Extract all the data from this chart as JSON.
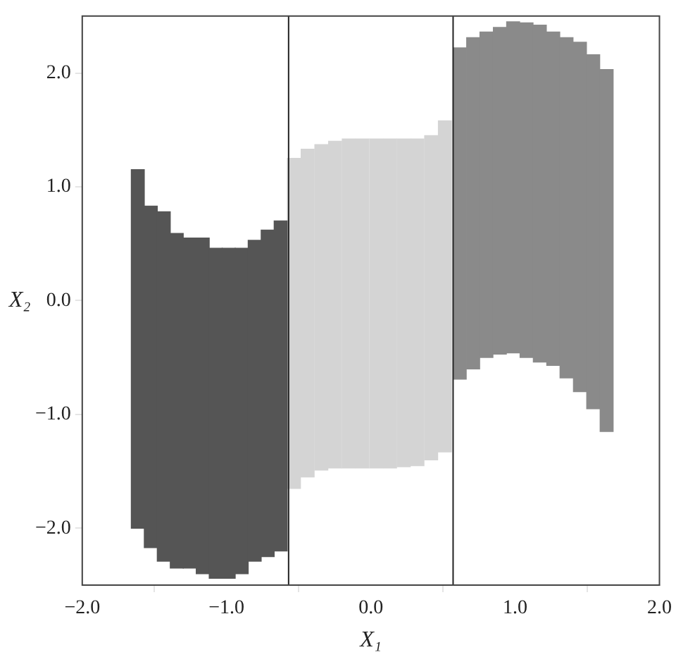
{
  "chart_data": {
    "type": "bar",
    "xlabel": "X₁",
    "ylabel": "X₂",
    "xlim": [
      -2,
      2
    ],
    "ylim": [
      -2.5,
      2.5
    ],
    "xticks": [
      {
        "value": -2,
        "label": "−2.0"
      },
      {
        "value": -1,
        "label": "−1.0"
      },
      {
        "value": 0,
        "label": "0.0"
      },
      {
        "value": 1,
        "label": "1.0"
      },
      {
        "value": 2,
        "label": "2.0"
      }
    ],
    "yticks": [
      {
        "value": -2,
        "label": "−2.0"
      },
      {
        "value": -1,
        "label": "−1.0"
      },
      {
        "value": 0,
        "label": "0.0"
      },
      {
        "value": 1,
        "label": "1.0"
      },
      {
        "value": 2,
        "label": "2.0"
      }
    ],
    "series": [
      {
        "color": "#555555",
        "x": [
          -1.615,
          -1.525,
          -1.435,
          -1.345,
          -1.255,
          -1.165,
          -1.075,
          -0.985,
          -0.895,
          -0.805,
          -0.715,
          -0.625
        ],
        "values": [
          3.15,
          3.0,
          3.07,
          2.94,
          2.9,
          2.95,
          2.9,
          2.9,
          2.86,
          2.82,
          2.87,
          2.9
        ],
        "base": [
          -2.0,
          -2.17,
          -2.29,
          -2.35,
          -2.35,
          -2.4,
          -2.44,
          -2.44,
          -2.4,
          -2.29,
          -2.25,
          -2.2
        ]
      },
      {
        "color": "#d4d4d4",
        "x": [
          -0.533,
          -0.438,
          -0.343,
          -0.248,
          -0.153,
          -0.058,
          0.038,
          0.133,
          0.228,
          0.323,
          0.418,
          0.513
        ],
        "values": [
          2.9,
          2.88,
          2.86,
          2.87,
          2.89,
          2.89,
          2.89,
          2.89,
          2.88,
          2.87,
          2.85,
          2.91
        ],
        "base": [
          -1.65,
          -1.55,
          -1.49,
          -1.47,
          -1.47,
          -1.47,
          -1.47,
          -1.47,
          -1.46,
          -1.45,
          -1.4,
          -1.33
        ]
      },
      {
        "color": "#8a8a8a",
        "x": [
          0.616,
          0.709,
          0.801,
          0.894,
          0.986,
          1.079,
          1.171,
          1.264,
          1.356,
          1.449,
          1.541,
          1.634
        ],
        "values": [
          2.91,
          2.91,
          2.86,
          2.87,
          2.91,
          2.94,
          2.96,
          2.93,
          2.99,
          3.07,
          3.11,
          3.18
        ],
        "base": [
          -0.69,
          -0.6,
          -0.5,
          -0.47,
          -0.46,
          -0.5,
          -0.54,
          -0.57,
          -0.68,
          -0.8,
          -0.95,
          -1.15
        ]
      }
    ],
    "ref_lines": [
      {
        "axis": "x",
        "value": -0.57,
        "color": "#222222"
      },
      {
        "axis": "x",
        "value": 0.57,
        "color": "#222222"
      }
    ]
  }
}
